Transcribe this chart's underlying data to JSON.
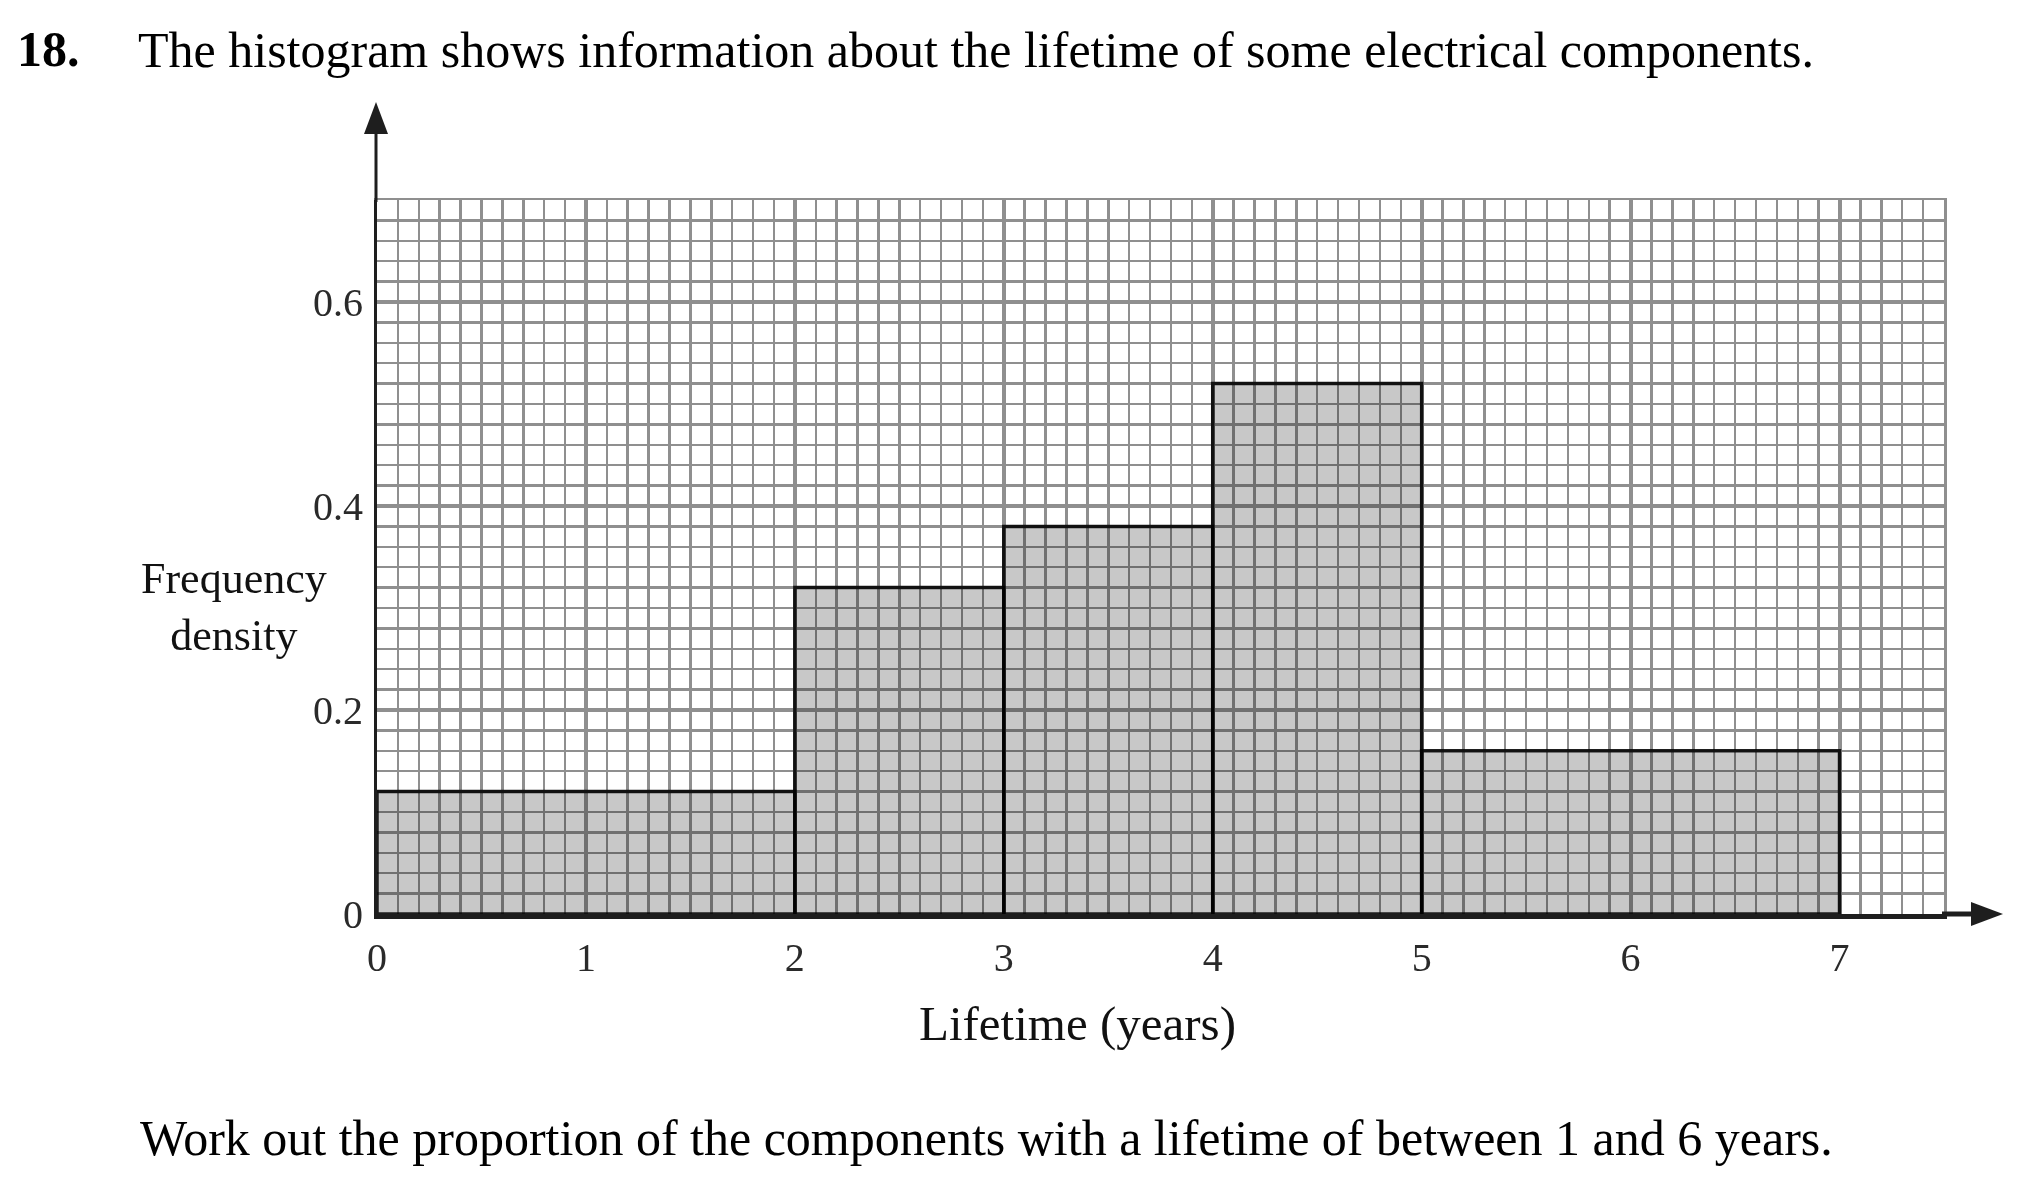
{
  "chart_data": {
    "type": "histogram",
    "title": "The histogram shows information about the lifetime of some electrical components.",
    "xlabel": "Lifetime (years)",
    "ylabel": "Frequency density",
    "annotations": [
      "18.",
      "Work out the proportion of the components with a lifetime of between 1 and 6 years."
    ],
    "bins": [
      0,
      2,
      3,
      4,
      5,
      7
    ],
    "values": [
      0.12,
      0.32,
      0.38,
      0.52,
      0.16
    ],
    "color": "#c8c8c8",
    "xlim": [
      0,
      7.5
    ],
    "ylim": [
      0,
      0.7
    ],
    "xticks": [
      0,
      1,
      2,
      3,
      4,
      5,
      6,
      7
    ],
    "yticks": [
      0,
      0.2,
      0.4,
      0.6
    ],
    "grid": true
  }
}
